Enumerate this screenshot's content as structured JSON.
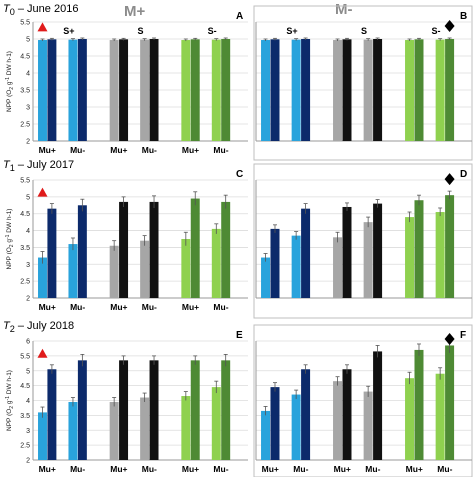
{
  "header": {
    "treatment_left": "M+",
    "treatment_right": "M-"
  },
  "rows": [
    {
      "time_italic": "T",
      "time_sub": "0",
      "time_rest": " – June 2016"
    },
    {
      "time_italic": "T",
      "time_sub": "1",
      "time_rest": " – July 2017"
    },
    {
      "time_italic": "T",
      "time_sub": "2",
      "time_rest": " – July 2018"
    }
  ],
  "colors": {
    "splus_light": "#29a3dc",
    "splus_dark": "#0c2a6b",
    "s_light": "#a6a6a6",
    "s_dark": "#111111",
    "sminus_light": "#8fd14f",
    "sminus_dark": "#4e8a34",
    "triangle": "#e01b1b",
    "diamond": "#000000",
    "grid": "#dcdcdc",
    "frame": "#bfbfbf"
  },
  "chart_data": [
    {
      "type": "bar",
      "panel": "A",
      "row": 0,
      "col": 0,
      "group_labels": [
        "S+",
        "S",
        "S-"
      ],
      "categories": [
        "Mu+",
        "Mu-"
      ],
      "show_category_labels": true,
      "marker": "triangle",
      "marker_over": "Mu+",
      "ylabel_pre": "NPP (O",
      "ylabel_sub": "2",
      "ylabel_mid": " g",
      "ylabel_sup": "-1",
      "ylabel_post": " DW h-1)",
      "ylim": [
        2,
        5.5
      ],
      "yticks": [
        "2",
        "2.5",
        "3",
        "3.5",
        "4",
        "4.5",
        "5",
        "5.5"
      ],
      "groups": [
        {
          "light": [
            4.97,
            4.98
          ],
          "dark": [
            4.99,
            5.0
          ],
          "err": [
            0.03,
            0.03,
            0.03,
            0.03
          ]
        },
        {
          "light": [
            4.97,
            4.98
          ],
          "dark": [
            4.99,
            5.0
          ],
          "err": [
            0.03,
            0.03,
            0.03,
            0.03
          ]
        },
        {
          "light": [
            4.97,
            4.98
          ],
          "dark": [
            4.99,
            5.0
          ],
          "err": [
            0.03,
            0.03,
            0.03,
            0.03
          ]
        }
      ]
    },
    {
      "type": "bar",
      "panel": "B",
      "row": 0,
      "col": 1,
      "group_labels": [
        "S+",
        "S",
        "S-"
      ],
      "categories": [
        "Mu+",
        "Mu-"
      ],
      "show_category_labels": false,
      "marker": "diamond",
      "marker_over": "Mu-",
      "ylim": [
        2,
        5.5
      ],
      "groups": [
        {
          "light": [
            4.97,
            4.98
          ],
          "dark": [
            4.99,
            5.0
          ],
          "err": [
            0.03,
            0.03,
            0.03,
            0.03
          ]
        },
        {
          "light": [
            4.97,
            4.98
          ],
          "dark": [
            4.99,
            5.0
          ],
          "err": [
            0.03,
            0.03,
            0.03,
            0.03
          ]
        },
        {
          "light": [
            4.97,
            4.98
          ],
          "dark": [
            4.99,
            5.0
          ],
          "err": [
            0.03,
            0.03,
            0.03,
            0.03
          ]
        }
      ]
    },
    {
      "type": "bar",
      "panel": "C",
      "row": 1,
      "col": 0,
      "categories": [
        "Mu+",
        "Mu-"
      ],
      "show_category_labels": true,
      "marker": "triangle",
      "marker_over": "Mu+",
      "ylabel_pre": "NPP (O",
      "ylabel_sub": "2",
      "ylabel_mid": " g",
      "ylabel_sup": "-1",
      "ylabel_post": " DW h-1)",
      "ylim": [
        2,
        5.5
      ],
      "yticks": [
        "2",
        "2.5",
        "3",
        "3.5",
        "4",
        "4.5",
        "5",
        "5.5"
      ],
      "groups": [
        {
          "light": [
            3.2,
            3.6
          ],
          "dark": [
            4.65,
            4.75
          ],
          "err": [
            0.18,
            0.15,
            0.18,
            0.18
          ]
        },
        {
          "light": [
            3.55,
            3.7
          ],
          "dark": [
            4.85,
            4.85
          ],
          "err": [
            0.15,
            0.15,
            0.15,
            0.18
          ]
        },
        {
          "light": [
            3.75,
            4.05
          ],
          "dark": [
            4.95,
            4.85
          ],
          "err": [
            0.2,
            0.2,
            0.15,
            0.2
          ]
        }
      ]
    },
    {
      "type": "bar",
      "panel": "D",
      "row": 1,
      "col": 1,
      "categories": [
        "Mu+",
        "Mu-"
      ],
      "show_category_labels": false,
      "marker": "diamond",
      "marker_over": "Mu-",
      "ylim": [
        2,
        5.5
      ],
      "groups": [
        {
          "light": [
            3.2,
            3.85
          ],
          "dark": [
            4.05,
            4.65
          ],
          "err": [
            0.12,
            0.12,
            0.12,
            0.15
          ]
        },
        {
          "light": [
            3.8,
            4.25
          ],
          "dark": [
            4.7,
            4.8
          ],
          "err": [
            0.15,
            0.12,
            0.15,
            0.12
          ]
        },
        {
          "light": [
            4.4,
            4.55
          ],
          "dark": [
            4.9,
            5.05
          ],
          "err": [
            0.15,
            0.15,
            0.12,
            0.12
          ]
        }
      ]
    },
    {
      "type": "bar",
      "panel": "E",
      "row": 2,
      "col": 0,
      "categories": [
        "Mu+",
        "Mu-"
      ],
      "show_category_labels": true,
      "marker": "triangle",
      "marker_over": "Mu+",
      "ylabel_pre": "NPP (O",
      "ylabel_sub": "2",
      "ylabel_mid": " g",
      "ylabel_sup": "-1",
      "ylabel_post": " DW h-1)",
      "ylim": [
        2,
        6
      ],
      "yticks": [
        "2",
        "2.5",
        "3",
        "3.5",
        "4",
        "4.5",
        "5",
        "5.5",
        "6"
      ],
      "groups": [
        {
          "light": [
            3.6,
            3.95
          ],
          "dark": [
            5.05,
            5.35
          ],
          "err": [
            0.18,
            0.15,
            0.15,
            0.2
          ]
        },
        {
          "light": [
            3.95,
            4.1
          ],
          "dark": [
            5.35,
            5.35
          ],
          "err": [
            0.15,
            0.15,
            0.15,
            0.15
          ]
        },
        {
          "light": [
            4.15,
            4.45
          ],
          "dark": [
            5.35,
            5.35
          ],
          "err": [
            0.15,
            0.15,
            0.2,
            0.2
          ]
        }
      ]
    },
    {
      "type": "bar",
      "panel": "F",
      "row": 2,
      "col": 1,
      "categories": [
        "Mu+",
        "Mu-"
      ],
      "show_category_labels": true,
      "marker": "diamond",
      "marker_over": "Mu-",
      "ylim": [
        2,
        6
      ],
      "groups": [
        {
          "light": [
            3.65,
            4.2
          ],
          "dark": [
            4.45,
            5.05
          ],
          "err": [
            0.15,
            0.15,
            0.15,
            0.15
          ]
        },
        {
          "light": [
            4.65,
            4.3
          ],
          "dark": [
            5.05,
            5.65
          ],
          "err": [
            0.15,
            0.15,
            0.18,
            0.2
          ]
        },
        {
          "light": [
            4.75,
            4.9
          ],
          "dark": [
            5.7,
            5.85
          ],
          "err": [
            0.2,
            0.2,
            0.2,
            0.25
          ]
        }
      ]
    }
  ]
}
